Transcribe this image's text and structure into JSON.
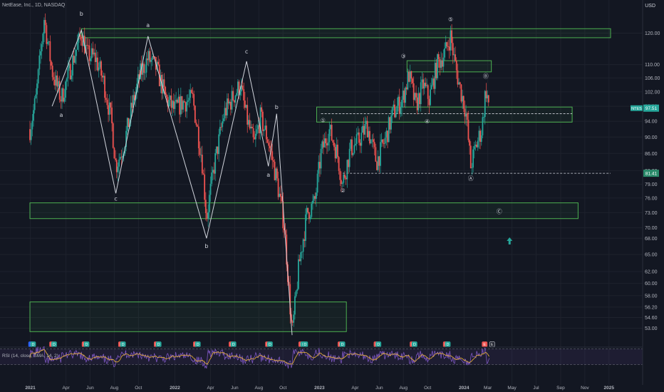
{
  "header": {
    "symbol_line": "NetEase, Inc., 1D, NASDAQ",
    "currency": "USD"
  },
  "colors": {
    "background": "#131722",
    "grid": "#1e222d",
    "axis_text": "#b2b5be",
    "candle_up": "#26a69a",
    "candle_down": "#ef5350",
    "zone": "#4caf50",
    "wave_line": "#d1d4dc",
    "rsi_line": "#7e57c2",
    "rsi_ma": "#f0b63a"
  },
  "chart_data": {
    "type": "candlestick",
    "title": "",
    "price_axis": {
      "scale": "log",
      "range": [
        50.3,
        130
      ],
      "ticks": [
        120.0,
        110.0,
        106.0,
        102.0,
        98.0,
        94.0,
        90.0,
        86.0,
        82.0,
        79.0,
        76.0,
        73.0,
        70.0,
        68.0,
        65.0,
        62.0,
        60.0,
        58.0,
        56.2,
        54.6,
        53.0
      ]
    },
    "time_axis": {
      "labels": [
        "2021",
        "Apr",
        "Jun",
        "Aug",
        "Oct",
        "2022",
        "Apr",
        "Jun",
        "Aug",
        "Oct",
        "2023",
        "Apr",
        "Jun",
        "Aug",
        "Oct",
        "2024",
        "Mar",
        "May",
        "Jul",
        "Sep",
        "Nov",
        "2025"
      ]
    },
    "price_tags": [
      {
        "label": "NTES",
        "value": "97.51",
        "price": 97.5
      },
      {
        "label": "",
        "value": "81.41",
        "price": 81.41
      }
    ],
    "path": [
      [
        "2020-12-31",
        92
      ],
      [
        "2021-01-15",
        100
      ],
      [
        "2021-02-05",
        125
      ],
      [
        "2021-02-25",
        108
      ],
      [
        "2021-03-20",
        100
      ],
      [
        "2021-04-15",
        110
      ],
      [
        "2021-05-10",
        120
      ],
      [
        "2021-05-25",
        113
      ],
      [
        "2021-06-15",
        112
      ],
      [
        "2021-07-05",
        105
      ],
      [
        "2021-07-25",
        94
      ],
      [
        "2021-08-05",
        83
      ],
      [
        "2021-08-25",
        88
      ],
      [
        "2021-09-15",
        98
      ],
      [
        "2021-10-05",
        107
      ],
      [
        "2021-10-25",
        112
      ],
      [
        "2021-11-15",
        109
      ],
      [
        "2021-12-10",
        100
      ],
      [
        "2021-12-31",
        97
      ],
      [
        "2022-01-20",
        99
      ],
      [
        "2022-02-15",
        100
      ],
      [
        "2022-03-10",
        85
      ],
      [
        "2022-03-22",
        72
      ],
      [
        "2022-04-10",
        83
      ],
      [
        "2022-05-05",
        96
      ],
      [
        "2022-05-25",
        100
      ],
      [
        "2022-06-15",
        104
      ],
      [
        "2022-07-01",
        95
      ],
      [
        "2022-07-20",
        88
      ],
      [
        "2022-08-05",
        95
      ],
      [
        "2022-08-25",
        89
      ],
      [
        "2022-09-15",
        80
      ],
      [
        "2022-10-05",
        70
      ],
      [
        "2022-10-24",
        52
      ],
      [
        "2022-11-10",
        63
      ],
      [
        "2022-12-01",
        73
      ],
      [
        "2022-12-20",
        75
      ],
      [
        "2023-01-05",
        86
      ],
      [
        "2023-01-25",
        92
      ],
      [
        "2023-02-15",
        86
      ],
      [
        "2023-02-28",
        79
      ],
      [
        "2023-03-20",
        87
      ],
      [
        "2023-04-10",
        89
      ],
      [
        "2023-05-01",
        93
      ],
      [
        "2023-05-25",
        84
      ],
      [
        "2023-06-15",
        89
      ],
      [
        "2023-07-05",
        96
      ],
      [
        "2023-07-30",
        100
      ],
      [
        "2023-08-15",
        107
      ],
      [
        "2023-09-01",
        98
      ],
      [
        "2023-09-20",
        104
      ],
      [
        "2023-10-05",
        100
      ],
      [
        "2023-10-25",
        110
      ],
      [
        "2023-11-15",
        114
      ],
      [
        "2023-11-28",
        119
      ],
      [
        "2023-12-08",
        111
      ],
      [
        "2023-12-20",
        104
      ],
      [
        "2024-01-05",
        97
      ],
      [
        "2024-01-18",
        83
      ],
      [
        "2024-02-01",
        88
      ],
      [
        "2024-02-15",
        92
      ],
      [
        "2024-02-25",
        103
      ],
      [
        "2024-03-05",
        97.5
      ]
    ],
    "wave_lines": [
      [
        [
          "2021-02-25",
          98
        ],
        [
          "2021-05-10",
          121
        ],
        [
          "2021-08-05",
          77
        ],
        [
          "2021-10-25",
          119
        ],
        [
          "2022-03-22",
          68
        ],
        [
          "2022-07-01",
          111
        ],
        [
          "2022-08-25",
          83
        ],
        [
          "2022-09-15",
          96
        ],
        [
          "2022-10-24",
          52
        ]
      ]
    ],
    "zones": [
      {
        "start": "2021-05-10",
        "end": "2025-01-05",
        "top": 121.5,
        "bottom": 118.5
      },
      {
        "start": "2023-08-10",
        "end": "2024-03-10",
        "top": 111.2,
        "bottom": 107.8
      },
      {
        "start": "2022-12-25",
        "end": "2024-09-30",
        "top": 97.8,
        "bottom": 93.8
      },
      {
        "start": "2020-12-31",
        "end": "2024-10-15",
        "top": 75.0,
        "bottom": 71.8
      },
      {
        "start": "2020-12-31",
        "end": "2023-03-10",
        "top": 57.0,
        "bottom": 52.5
      }
    ],
    "dashed_lines": [
      {
        "start": "2023-01-05",
        "end": "2024-09-30",
        "price": 96.0
      },
      {
        "start": "2023-03-01",
        "end": "2025-01-05",
        "price": 81.4
      }
    ],
    "wave_labels": [
      {
        "text": "b",
        "date": "2021-05-10",
        "price": 126,
        "color": "#d1d4dc"
      },
      {
        "text": "a",
        "date": "2021-03-20",
        "price": 95.2,
        "color": "#d1d4dc"
      },
      {
        "text": "a",
        "date": "2021-10-25",
        "price": 122,
        "color": "#d1d4dc"
      },
      {
        "text": "c",
        "date": "2021-08-05",
        "price": 75.5,
        "color": "#d1d4dc"
      },
      {
        "text": "b",
        "date": "2022-03-22",
        "price": 66.2,
        "color": "#d1d4dc"
      },
      {
        "text": "c",
        "date": "2022-07-01",
        "price": 113.5,
        "color": "#d1d4dc"
      },
      {
        "text": "b",
        "date": "2022-09-15",
        "price": 97.3,
        "color": "#d1d4dc"
      },
      {
        "text": "a",
        "date": "2022-08-25",
        "price": 80.6,
        "color": "#d1d4dc"
      },
      {
        "text": "①",
        "date": "2023-01-10",
        "price": 93.8,
        "color": "#d1d4dc"
      },
      {
        "text": "②",
        "date": "2023-03-01",
        "price": 77.2,
        "color": "#d1d4dc"
      },
      {
        "text": "③",
        "date": "2023-08-01",
        "price": 112,
        "color": "#d1d4dc"
      },
      {
        "text": "④",
        "date": "2023-09-30",
        "price": 93.5,
        "color": "#d1d4dc"
      },
      {
        "text": "⑤",
        "date": "2023-11-28",
        "price": 124,
        "color": "#d1d4dc"
      },
      {
        "text": "Ⓐ",
        "date": "2024-01-18",
        "price": 79.8,
        "color": "#d1d4dc"
      },
      {
        "text": "Ⓑ",
        "date": "2024-02-25",
        "price": 106,
        "color": "#d1d4dc"
      },
      {
        "text": "Ⓒ",
        "date": "2024-03-30",
        "price": 72.8,
        "color": "#d1d4dc"
      }
    ],
    "arrow": {
      "date": "2024-04-25",
      "price": 67.5
    },
    "event_markers": [
      {
        "text": "S",
        "date": "2021-01-03",
        "type": "S"
      },
      {
        "text": "D",
        "date": "2021-01-08",
        "type": "D"
      },
      {
        "text": "E",
        "date": "2021-02-25",
        "type": "E"
      },
      {
        "text": "D",
        "date": "2021-03-02",
        "type": "D"
      },
      {
        "text": "E",
        "date": "2021-05-18",
        "type": "E"
      },
      {
        "text": "D",
        "date": "2021-05-23",
        "type": "D"
      },
      {
        "text": "E",
        "date": "2021-08-18",
        "type": "E"
      },
      {
        "text": "D",
        "date": "2021-08-23",
        "type": "D"
      },
      {
        "text": "E",
        "date": "2021-11-16",
        "type": "E"
      },
      {
        "text": "D",
        "date": "2021-11-21",
        "type": "D"
      },
      {
        "text": "E",
        "date": "2022-02-23",
        "type": "E"
      },
      {
        "text": "D",
        "date": "2022-02-28",
        "type": "D"
      },
      {
        "text": "E",
        "date": "2022-05-24",
        "type": "E"
      },
      {
        "text": "D",
        "date": "2022-05-29",
        "type": "D"
      },
      {
        "text": "E",
        "date": "2022-08-24",
        "type": "E"
      },
      {
        "text": "D",
        "date": "2022-08-29",
        "type": "D"
      },
      {
        "text": "E",
        "date": "2022-11-16",
        "type": "E"
      },
      {
        "text": "D",
        "date": "2022-11-21",
        "type": "D"
      },
      {
        "text": "D",
        "date": "2022-11-26",
        "type": "D"
      },
      {
        "text": "E",
        "date": "2023-02-23",
        "type": "E"
      },
      {
        "text": "D",
        "date": "2023-02-28",
        "type": "D"
      },
      {
        "text": "E",
        "date": "2023-05-25",
        "type": "E"
      },
      {
        "text": "D",
        "date": "2023-05-30",
        "type": "D"
      },
      {
        "text": "E",
        "date": "2023-08-24",
        "type": "E"
      },
      {
        "text": "D",
        "date": "2023-08-29",
        "type": "D"
      },
      {
        "text": "E",
        "date": "2023-11-16",
        "type": "E"
      },
      {
        "text": "D",
        "date": "2023-11-21",
        "type": "D"
      },
      {
        "text": "E",
        "date": "2024-02-22",
        "type": "E"
      },
      {
        "text": "E",
        "date": "2024-03-12",
        "type": "Eo"
      }
    ],
    "rsi": {
      "label": "RSI (14, close, SMA, 14, 2)",
      "ticks": [
        60.0,
        40.0,
        20.0
      ],
      "levels": [
        70,
        30
      ]
    }
  }
}
